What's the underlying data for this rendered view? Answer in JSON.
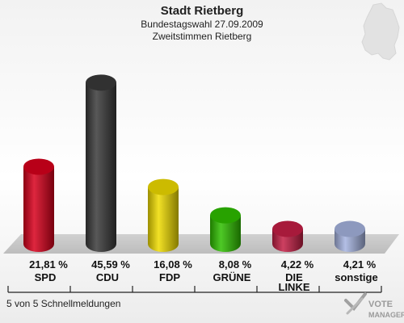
{
  "header": {
    "title": "Stadt Rietberg",
    "subtitle1": "Bundestagswahl 27.09.2009",
    "subtitle2": "Zweitstimmen Rietberg"
  },
  "footer": {
    "status": "5 von 5 Schnellmeldungen"
  },
  "logo": {
    "line1": "VOTE",
    "line2": "MANAGER"
  },
  "chart_data": {
    "type": "bar",
    "categories": [
      "SPD",
      "CDU",
      "FDP",
      "GRÜNE",
      "DIE LINKE",
      "sonstige"
    ],
    "values": [
      21.81,
      45.59,
      16.08,
      8.08,
      4.22,
      4.21
    ],
    "value_labels": [
      "21,81 %",
      "45,59 %",
      "16,08 %",
      "8,08 %",
      "4,22 %",
      "4,21 %"
    ],
    "colors": [
      "#d8001c",
      "#3a3a3a",
      "#f0dc00",
      "#2fbf00",
      "#c41e45",
      "#a6b4e0"
    ],
    "ylim": [
      0,
      50
    ],
    "grid": false,
    "legend": "none"
  }
}
